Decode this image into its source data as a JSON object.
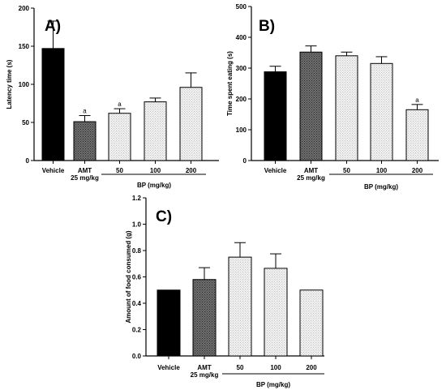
{
  "chart_data": [
    {
      "type": "bar",
      "panel_label": "A)",
      "ylabel": "Latency time (s)",
      "ylim": [
        0,
        200
      ],
      "yticks": [
        "0",
        "50",
        "100",
        "150",
        "200"
      ],
      "categories": [
        "Vehicle",
        "AMT",
        "50",
        "100",
        "200"
      ],
      "category_sublabel": {
        "AMT": "25 mg/kg"
      },
      "group_label": "BP (mg/kg)",
      "values": [
        147,
        51,
        62,
        77,
        96
      ],
      "errors": [
        36,
        8,
        6,
        5,
        19
      ],
      "annotations": [
        "",
        "a",
        "a",
        "",
        ""
      ],
      "bar_styles": [
        "solid-black",
        "dark-crosshatch",
        "light-dots",
        "light-dots",
        "light-dots"
      ],
      "grid": false
    },
    {
      "type": "bar",
      "panel_label": "B)",
      "ylabel": "Time spent eating (s)",
      "ylim": [
        0,
        500
      ],
      "yticks": [
        "0",
        "100",
        "200",
        "300",
        "400",
        "500"
      ],
      "categories": [
        "Vehicle",
        "AMT",
        "50",
        "100",
        "200"
      ],
      "category_sublabel": {
        "AMT": "25 mg/kg"
      },
      "group_label": "BP (mg/kg)",
      "values": [
        288,
        352,
        340,
        315,
        165
      ],
      "errors": [
        18,
        20,
        12,
        22,
        17
      ],
      "annotations": [
        "",
        "",
        "",
        "",
        "a"
      ],
      "bar_styles": [
        "solid-black",
        "dark-crosshatch",
        "light-dots",
        "light-dots",
        "light-dots"
      ],
      "grid": false
    },
    {
      "type": "bar",
      "panel_label": "C)",
      "ylabel": "Amount of food consumed (g)",
      "ylim": [
        0,
        1.2
      ],
      "yticks": [
        "0.0",
        "0.2",
        "0.4",
        "0.6",
        "0.8",
        "1.0",
        "1.2"
      ],
      "categories": [
        "Vehicle",
        "AMT",
        "50",
        "100",
        "200"
      ],
      "category_sublabel": {
        "AMT": "25 mg/kg"
      },
      "group_label": "BP (mg/kg)",
      "values": [
        0.5,
        0.58,
        0.75,
        0.665,
        0.5
      ],
      "errors": [
        0,
        0.09,
        0.11,
        0.11,
        0
      ],
      "annotations": [
        "",
        "",
        "",
        "",
        ""
      ],
      "bar_styles": [
        "solid-black",
        "dark-crosshatch",
        "light-dots",
        "light-dots",
        "light-dots"
      ],
      "grid": false
    }
  ]
}
